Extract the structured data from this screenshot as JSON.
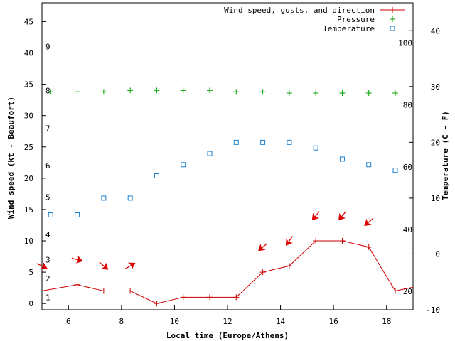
{
  "chart_data": {
    "type": "line",
    "title": "",
    "xlabel": "Local time (Europe/Athens)",
    "ylabel": "Wind speed (kt - Beaufort)",
    "y2label": "Temperature (C - F)",
    "xlim": [
      5,
      19
    ],
    "ylim": [
      -1,
      48
    ],
    "y2lim": [
      -10,
      45
    ],
    "grid": false,
    "legend_position": "top-right",
    "x_ticks": [
      6,
      8,
      10,
      12,
      14,
      16,
      18
    ],
    "y_ticks": [
      0,
      5,
      10,
      15,
      20,
      25,
      30,
      35,
      40,
      45
    ],
    "y2_ticks": [
      -10,
      0,
      10,
      20,
      30,
      40
    ],
    "beaufort_labels": [
      {
        "label": "1",
        "kt": 1
      },
      {
        "label": "2",
        "kt": 4
      },
      {
        "label": "3",
        "kt": 7
      },
      {
        "label": "4",
        "kt": 11
      },
      {
        "label": "5",
        "kt": 17
      },
      {
        "label": "6",
        "kt": 22
      },
      {
        "label": "7",
        "kt": 28
      },
      {
        "label": "8",
        "kt": 34
      },
      {
        "label": "9",
        "kt": 41
      }
    ],
    "fahrenheit_labels": [
      {
        "label": "20",
        "celsius": -6.7
      },
      {
        "label": "40",
        "celsius": 4.4
      },
      {
        "label": "60",
        "celsius": 15.6
      },
      {
        "label": "80",
        "celsius": 26.7
      },
      {
        "label": "100",
        "celsius": 37.8
      }
    ],
    "series": [
      {
        "name": "Wind speed, gusts, and direction",
        "color": "#cc0000",
        "marker": "cross",
        "axis": "left",
        "x": [
          5,
          6.33,
          7.33,
          8.33,
          9.33,
          10.33,
          11.33,
          12.33,
          13.33,
          14.33,
          15.33,
          16.33,
          17.33,
          18.33,
          19
        ],
        "y": [
          2,
          3,
          2,
          2,
          0,
          1,
          1,
          1,
          5,
          6,
          10,
          10,
          9,
          2,
          2.6
        ]
      },
      {
        "name": "Pressure",
        "color": "#00a000",
        "marker": "plus",
        "axis": "left",
        "x": [
          5.33,
          6.33,
          7.33,
          8.33,
          9.33,
          10.33,
          11.33,
          12.33,
          13.33,
          14.33,
          15.33,
          16.33,
          17.33,
          18.33
        ],
        "y": [
          33.8,
          33.8,
          33.8,
          34,
          34,
          34,
          34,
          33.8,
          33.8,
          33.6,
          33.6,
          33.6,
          33.6,
          33.6
        ]
      },
      {
        "name": "Temperature",
        "color": "#1a7fd0",
        "marker": "square",
        "axis": "right",
        "x": [
          5.33,
          6.33,
          7.33,
          8.33,
          9.33,
          10.33,
          11.33,
          12.33,
          13.33,
          14.33,
          15.33,
          16.33,
          17.33,
          18.33
        ],
        "y": [
          7,
          7,
          10,
          10,
          14,
          16,
          18,
          20,
          20,
          20,
          19,
          17,
          16,
          15
        ]
      }
    ],
    "wind_arrows": [
      {
        "x": 5,
        "y": 6,
        "angle": 25
      },
      {
        "x": 6.33,
        "y": 7,
        "angle": 15
      },
      {
        "x": 7.33,
        "y": 6,
        "angle": 40
      },
      {
        "x": 8.33,
        "y": 6,
        "angle": -30
      },
      {
        "x": 13.33,
        "y": 9,
        "angle": 140
      },
      {
        "x": 14.33,
        "y": 10,
        "angle": 125
      },
      {
        "x": 15.33,
        "y": 14,
        "angle": 130
      },
      {
        "x": 16.33,
        "y": 14,
        "angle": 130
      },
      {
        "x": 17.33,
        "y": 13,
        "angle": 140
      }
    ]
  }
}
